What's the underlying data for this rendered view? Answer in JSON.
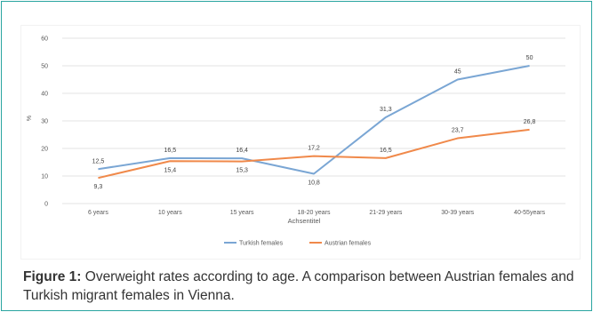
{
  "chart_data": {
    "type": "line",
    "title": "",
    "xlabel": "Achsentitel",
    "ylabel": "%",
    "ylim": [
      0,
      60
    ],
    "yticks": [
      0,
      10,
      20,
      30,
      40,
      50,
      60
    ],
    "grid": true,
    "legend_position": "bottom",
    "categories": [
      "6 years",
      "10 years",
      "15 years",
      "18-20 years",
      "21-29 years",
      "30-39 years",
      "40-55years"
    ],
    "series": [
      {
        "name": "Turkish females",
        "color": "#7aa6d4",
        "values": [
          12.5,
          16.5,
          16.4,
          10.8,
          31.3,
          45,
          50
        ],
        "labels": [
          "12,5",
          "16,5",
          "16,4",
          "10,8",
          "31,3",
          "45",
          "50"
        ]
      },
      {
        "name": "Austrian females",
        "color": "#f0894a",
        "values": [
          9.3,
          15.4,
          15.3,
          17.2,
          16.5,
          23.7,
          26.8
        ],
        "labels": [
          "9,3",
          "15,4",
          "15,3",
          "17,2",
          "16,5",
          "23,7",
          "26,8"
        ]
      }
    ]
  },
  "caption": {
    "label": "Figure 1:",
    "text": " Overweight rates according to age. A comparison between Austrian females and Turkish migrant females in Vienna."
  }
}
